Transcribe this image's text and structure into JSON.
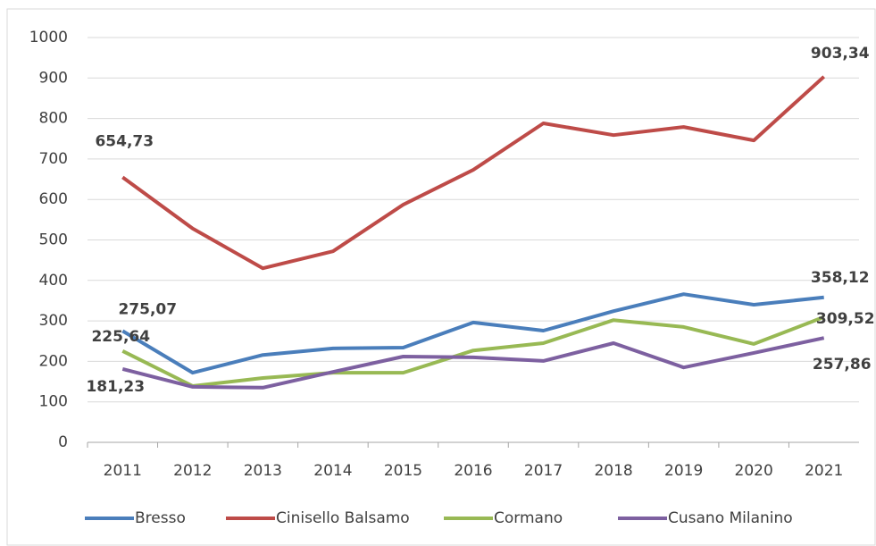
{
  "chart_data": {
    "type": "line",
    "categories": [
      "2011",
      "2012",
      "2013",
      "2014",
      "2015",
      "2016",
      "2017",
      "2018",
      "2019",
      "2020",
      "2021"
    ],
    "series": [
      {
        "name": "Bresso",
        "color": "#4a7ebb",
        "values": [
          275.07,
          172,
          216,
          232,
          234,
          296,
          276,
          324,
          366,
          340,
          358.12
        ],
        "value_labels": [
          "275,07",
          null,
          null,
          null,
          null,
          null,
          null,
          null,
          null,
          null,
          "358,12"
        ]
      },
      {
        "name": "Cinisello Balsamo",
        "color": "#be4b48",
        "values": [
          654.73,
          528,
          430,
          472,
          587,
          673,
          788,
          759,
          779,
          746,
          903.34
        ],
        "value_labels": [
          "654,73",
          null,
          null,
          null,
          null,
          null,
          null,
          null,
          null,
          null,
          "903,34"
        ]
      },
      {
        "name": "Cormano",
        "color": "#98b954",
        "values": [
          225.64,
          139,
          159,
          172,
          172,
          227,
          245,
          302,
          285,
          243,
          309.52
        ],
        "value_labels": [
          "225,64",
          null,
          null,
          null,
          null,
          null,
          null,
          null,
          null,
          null,
          "309,52"
        ]
      },
      {
        "name": "Cusano Milanino",
        "color": "#7d60a0",
        "values": [
          181.23,
          137,
          135,
          174,
          212,
          210,
          201,
          245,
          185,
          221,
          257.86
        ],
        "value_labels": [
          "181,23",
          null,
          null,
          null,
          null,
          null,
          null,
          null,
          null,
          null,
          "257,86"
        ]
      }
    ],
    "ylim": [
      0,
      1000
    ],
    "yticks": [
      0,
      100,
      200,
      300,
      400,
      500,
      600,
      700,
      800,
      900,
      1000
    ],
    "grid": true,
    "legend": "bottom"
  }
}
